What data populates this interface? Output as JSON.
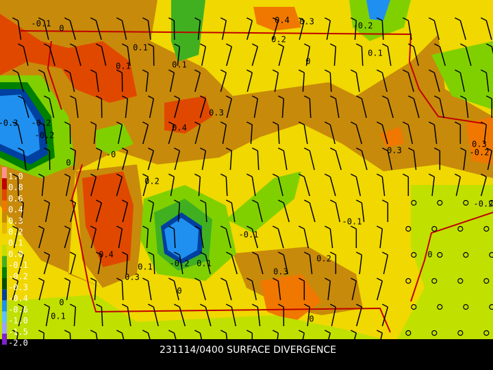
{
  "title": "231114/0400 SURFACE DIVERGENCE",
  "legend": {
    "labels": [
      "1.0",
      "0.8",
      "0.6",
      "0.4",
      "0.3",
      "0.2",
      "0.1",
      "0.0",
      "-0.1",
      "-0.2",
      "-0.3",
      "-0.4",
      "-0.6",
      "-1.0",
      "-1.5",
      "-2.0"
    ]
  },
  "map": {
    "labels": [
      "-0.1",
      "0",
      "0.3",
      "-0.2",
      "0.2",
      "0.1",
      "0.1",
      "0.1",
      "0.1",
      "0",
      "-0.3",
      "-0.2",
      "0.4",
      "0.3",
      "0.4",
      "0.3",
      "-0",
      "-0.2",
      "0",
      "0.2",
      "0.3",
      "-0.2",
      "0.1",
      "-0.1",
      "0.4",
      "0.3",
      "-0.2",
      "0.1",
      "0.2",
      "0.3",
      "0",
      "0",
      "0",
      "0.1",
      "-0.2",
      "-0.1",
      "0"
    ]
  }
}
